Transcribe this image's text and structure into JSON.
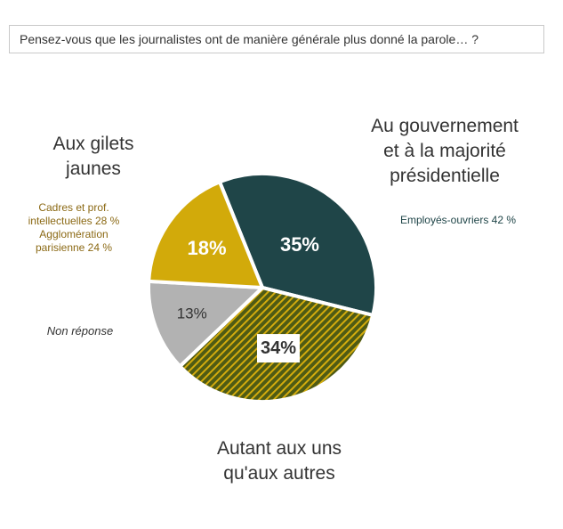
{
  "question": "Pensez-vous que les journalistes ont de manière générale plus donné la parole… ?",
  "colors": {
    "gouvernement": "#1f4548",
    "autant": "#4f5b14",
    "autant_stripe": "#d4ac0d",
    "non_reponse": "#b2b2b2",
    "gilets": "#d2aa0a",
    "annotation_gold": "#8b6914",
    "annotation_dark": "#1f4548",
    "separator": "#ffffff"
  },
  "labels": {
    "gilets": [
      "Aux gilets",
      "jaunes"
    ],
    "gouvernement": [
      "Au gouvernement",
      "et à la majorité",
      "présidentielle"
    ],
    "autant": [
      "Autant aux uns",
      "qu'aux autres"
    ],
    "non_reponse": "Non réponse",
    "gilets_note": [
      "Cadres et prof.",
      "intellectuelles 28 %",
      "Agglomération",
      "parisienne 24 %"
    ],
    "gouvernement_note": "Employés-ouvriers 42 %"
  },
  "chart_data": {
    "type": "pie",
    "slices": [
      {
        "key": "gouvernement",
        "label": "Au gouvernement et à la majorité présidentielle",
        "value": 35,
        "display": "35%"
      },
      {
        "key": "autant",
        "label": "Autant aux uns qu'aux autres",
        "value": 34,
        "display": "34%"
      },
      {
        "key": "non_reponse",
        "label": "Non réponse",
        "value": 13,
        "display": "13%"
      },
      {
        "key": "gilets",
        "label": "Aux gilets jaunes",
        "value": 18,
        "display": "18%"
      }
    ],
    "start_angle_deg": -22,
    "direction": "clockwise"
  }
}
